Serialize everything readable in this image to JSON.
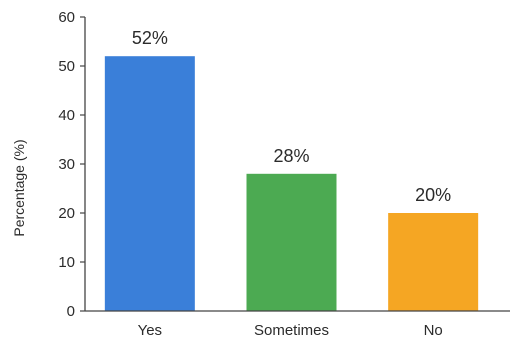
{
  "chart_data": {
    "type": "bar",
    "categories": [
      "Yes",
      "Sometimes",
      "No"
    ],
    "values": [
      52,
      28,
      20
    ],
    "data_labels": [
      "52%",
      "28%",
      "20%"
    ],
    "colors": [
      "#3a7fd9",
      "#4caa52",
      "#f5a623"
    ],
    "title": "",
    "xlabel": "",
    "ylabel": "Percentage (%)",
    "ylim": [
      0,
      60
    ],
    "yticks": [
      0,
      10,
      20,
      30,
      40,
      50,
      60
    ],
    "grid": false,
    "legend": "none"
  }
}
